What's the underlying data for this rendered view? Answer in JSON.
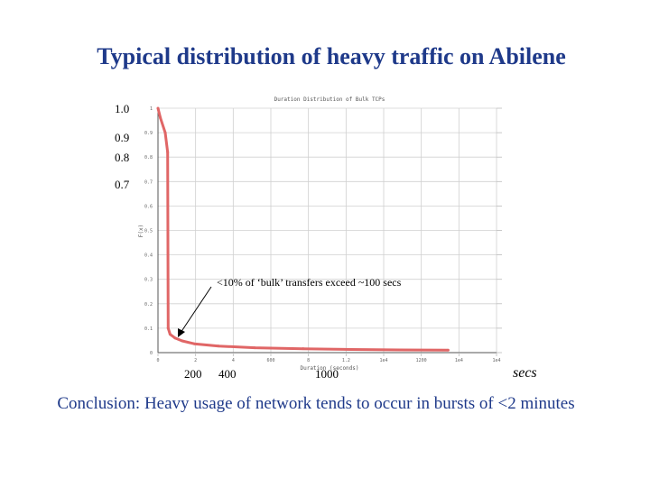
{
  "slide": {
    "title": "Typical distribution of heavy traffic on Abilene",
    "conclusion": "Conclusion: Heavy usage of network tends to occur in bursts of <2 minutes",
    "units": "secs"
  },
  "overlay_y_labels": [
    "1.0",
    "0.9",
    "0.8",
    "0.7"
  ],
  "overlay_x_labels": [
    "200",
    "400",
    "1000"
  ],
  "annotation": "<10% of ‘bulk’ transfers exceed ~100 secs",
  "chart_data": {
    "type": "line",
    "title": "Duration Distribution of Bulk TCPs",
    "xlabel": "Duration (seconds)",
    "ylabel": "F(x)",
    "xlim": [
      0,
      14000
    ],
    "ylim": [
      0,
      1
    ],
    "x_ticks": [
      "0",
      "2",
      "4",
      "600",
      "8",
      "1.2",
      "1e4",
      "1200",
      "1e4",
      "1e4"
    ],
    "y_ticks": [
      "0",
      "0.1",
      "0.2",
      "0.3",
      "0.4",
      "0.5",
      "0.6",
      "0.7",
      "0.8",
      "0.9",
      "1"
    ],
    "grid": true,
    "series": [
      {
        "color": "#e06666",
        "x": [
          0,
          100,
          300,
          400,
          420,
          500,
          700,
          1000,
          1500,
          2500,
          4000,
          6000,
          8000,
          10000,
          12000
        ],
        "y": [
          1.0,
          0.96,
          0.9,
          0.82,
          0.1,
          0.075,
          0.06,
          0.048,
          0.036,
          0.027,
          0.02,
          0.016,
          0.013,
          0.011,
          0.01
        ]
      }
    ]
  }
}
